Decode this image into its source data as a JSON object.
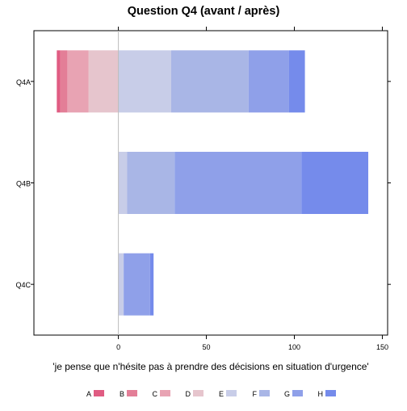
{
  "chart_data": {
    "type": "bar",
    "orientation": "horizontal",
    "stacked": "diverging",
    "title": "Question Q4 (avant / après)",
    "xlabel": "'je pense que n'hésite pas à prendre des décisions en situation d'urgence'",
    "ylabel": "",
    "xlim": [
      -48,
      153
    ],
    "xticks": [
      0,
      50,
      100,
      150
    ],
    "grid": false,
    "legend_position": "bottom",
    "categories": [
      "Q4A",
      "Q4B",
      "Q4C"
    ],
    "series": [
      {
        "name": "A",
        "color": "#e05c82",
        "values": [
          -2,
          0,
          0
        ]
      },
      {
        "name": "B",
        "color": "#e37e97",
        "values": [
          -4,
          0,
          0
        ]
      },
      {
        "name": "C",
        "color": "#e8a3b3",
        "values": [
          -12,
          0,
          0
        ]
      },
      {
        "name": "D",
        "color": "#e6c5cd",
        "values": [
          -17,
          0,
          0
        ]
      },
      {
        "name": "E",
        "color": "#c8cde8",
        "values": [
          30,
          5,
          3
        ]
      },
      {
        "name": "F",
        "color": "#a9b6e6",
        "values": [
          44,
          27,
          0
        ]
      },
      {
        "name": "G",
        "color": "#8fa0e9",
        "values": [
          23,
          72,
          15
        ]
      },
      {
        "name": "H",
        "color": "#758beb",
        "values": [
          9,
          38,
          2
        ]
      }
    ]
  }
}
